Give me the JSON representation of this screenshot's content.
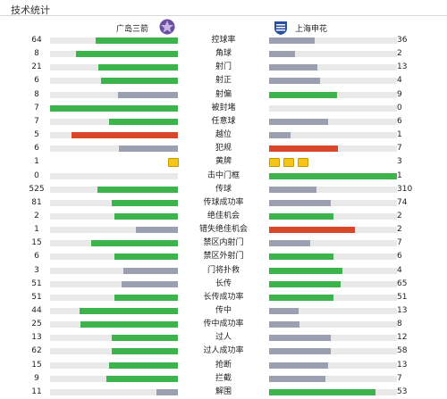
{
  "title": "技术统计",
  "teams": {
    "home": "广岛三箭",
    "away": "上海申花"
  },
  "colors": {
    "win": "#3cb44b",
    "lose": "#9aa0b0",
    "foul": "#d9472b",
    "track": "#e9e9e9",
    "yellow": "#f5c518"
  },
  "stats": [
    {
      "label": "控球率",
      "home": "64",
      "away": "36",
      "home_fill": 0.64,
      "away_fill": 0.36,
      "home_color": "win",
      "away_color": "lose"
    },
    {
      "label": "角球",
      "home": "8",
      "away": "2",
      "home_fill": 0.8,
      "away_fill": 0.2,
      "home_color": "win",
      "away_color": "lose"
    },
    {
      "label": "射门",
      "home": "21",
      "away": "13",
      "home_fill": 0.62,
      "away_fill": 0.38,
      "home_color": "win",
      "away_color": "lose"
    },
    {
      "label": "射正",
      "home": "6",
      "away": "4",
      "home_fill": 0.6,
      "away_fill": 0.4,
      "home_color": "win",
      "away_color": "lose"
    },
    {
      "label": "射偏",
      "home": "8",
      "away": "9",
      "home_fill": 0.47,
      "away_fill": 0.53,
      "home_color": "lose",
      "away_color": "win"
    },
    {
      "label": "被封堵",
      "home": "7",
      "away": "0",
      "home_fill": 1.0,
      "away_fill": 0.0,
      "home_color": "win",
      "away_color": "lose"
    },
    {
      "label": "任意球",
      "home": "7",
      "away": "6",
      "home_fill": 0.54,
      "away_fill": 0.46,
      "home_color": "win",
      "away_color": "lose"
    },
    {
      "label": "越位",
      "home": "5",
      "away": "1",
      "home_fill": 0.83,
      "away_fill": 0.17,
      "home_color": "foul",
      "away_color": "lose"
    },
    {
      "label": "犯规",
      "home": "6",
      "away": "7",
      "home_fill": 0.46,
      "away_fill": 0.54,
      "home_color": "lose",
      "away_color": "foul"
    },
    {
      "label": "黄牌",
      "home": "1",
      "away": "3",
      "type": "cards",
      "home_cards": 1,
      "away_cards": 3
    },
    {
      "label": "击中门框",
      "home": "0",
      "away": "1",
      "home_fill": 0.0,
      "away_fill": 1.0,
      "home_color": "lose",
      "away_color": "win"
    },
    {
      "label": "传球",
      "home": "525",
      "away": "310",
      "home_fill": 0.63,
      "away_fill": 0.37,
      "home_color": "win",
      "away_color": "lose"
    },
    {
      "label": "传球成功率",
      "home": "81",
      "away": "74",
      "home_fill": 0.52,
      "away_fill": 0.48,
      "home_color": "win",
      "away_color": "lose"
    },
    {
      "label": "绝佳机会",
      "home": "2",
      "away": "2",
      "home_fill": 0.5,
      "away_fill": 0.5,
      "home_color": "win",
      "away_color": "win"
    },
    {
      "label": "错失绝佳机会",
      "home": "1",
      "away": "2",
      "home_fill": 0.33,
      "away_fill": 0.67,
      "home_color": "lose",
      "away_color": "foul"
    },
    {
      "label": "禁区内射门",
      "home": "15",
      "away": "7",
      "home_fill": 0.68,
      "away_fill": 0.32,
      "home_color": "win",
      "away_color": "lose"
    },
    {
      "label": "禁区外射门",
      "home": "6",
      "away": "6",
      "home_fill": 0.5,
      "away_fill": 0.5,
      "home_color": "win",
      "away_color": "win"
    },
    {
      "label": "门将扑救",
      "home": "3",
      "away": "4",
      "home_fill": 0.43,
      "away_fill": 0.57,
      "home_color": "lose",
      "away_color": "win"
    },
    {
      "label": "长传",
      "home": "51",
      "away": "65",
      "home_fill": 0.44,
      "away_fill": 0.56,
      "home_color": "lose",
      "away_color": "win"
    },
    {
      "label": "长传成功率",
      "home": "51",
      "away": "51",
      "home_fill": 0.5,
      "away_fill": 0.5,
      "home_color": "win",
      "away_color": "win"
    },
    {
      "label": "传中",
      "home": "44",
      "away": "13",
      "home_fill": 0.77,
      "away_fill": 0.23,
      "home_color": "win",
      "away_color": "lose"
    },
    {
      "label": "传中成功率",
      "home": "25",
      "away": "8",
      "home_fill": 0.76,
      "away_fill": 0.24,
      "home_color": "win",
      "away_color": "lose"
    },
    {
      "label": "过人",
      "home": "13",
      "away": "12",
      "home_fill": 0.52,
      "away_fill": 0.48,
      "home_color": "win",
      "away_color": "lose"
    },
    {
      "label": "过人成功率",
      "home": "62",
      "away": "58",
      "home_fill": 0.52,
      "away_fill": 0.48,
      "home_color": "win",
      "away_color": "lose"
    },
    {
      "label": "抢断",
      "home": "15",
      "away": "13",
      "home_fill": 0.54,
      "away_fill": 0.46,
      "home_color": "win",
      "away_color": "lose"
    },
    {
      "label": "拦截",
      "home": "9",
      "away": "7",
      "home_fill": 0.56,
      "away_fill": 0.44,
      "home_color": "win",
      "away_color": "lose"
    },
    {
      "label": "解围",
      "home": "11",
      "away": "53",
      "home_fill": 0.17,
      "away_fill": 0.83,
      "home_color": "lose",
      "away_color": "win"
    }
  ]
}
